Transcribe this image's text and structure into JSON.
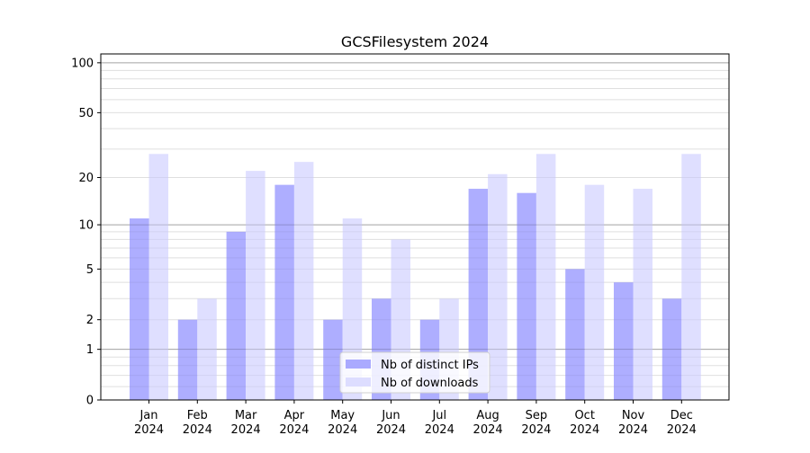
{
  "chart_data": {
    "type": "bar",
    "title": "GCSFilesystem 2024",
    "xlabel": "",
    "ylabel": "",
    "yscale": "log(1+y)",
    "ylim": [
      0,
      113
    ],
    "yticks": [
      0,
      1,
      2,
      5,
      10,
      20,
      50,
      100
    ],
    "grid": true,
    "legend_position": "lower center",
    "categories": [
      "Jan\n2024",
      "Feb\n2024",
      "Mar\n2024",
      "Apr\n2024",
      "May\n2024",
      "Jun\n2024",
      "Jul\n2024",
      "Aug\n2024",
      "Sep\n2024",
      "Oct\n2024",
      "Nov\n2024",
      "Dec\n2024"
    ],
    "series": [
      {
        "name": "Nb of distinct IPs",
        "color": "#aaaaff",
        "values": [
          11,
          2,
          9,
          18,
          2,
          3,
          2,
          17,
          16,
          5,
          4,
          3
        ]
      },
      {
        "name": "Nb of downloads",
        "color": "#ddddff",
        "values": [
          28,
          3,
          22,
          25,
          11,
          8,
          3,
          21,
          28,
          18,
          17,
          28
        ]
      }
    ]
  }
}
